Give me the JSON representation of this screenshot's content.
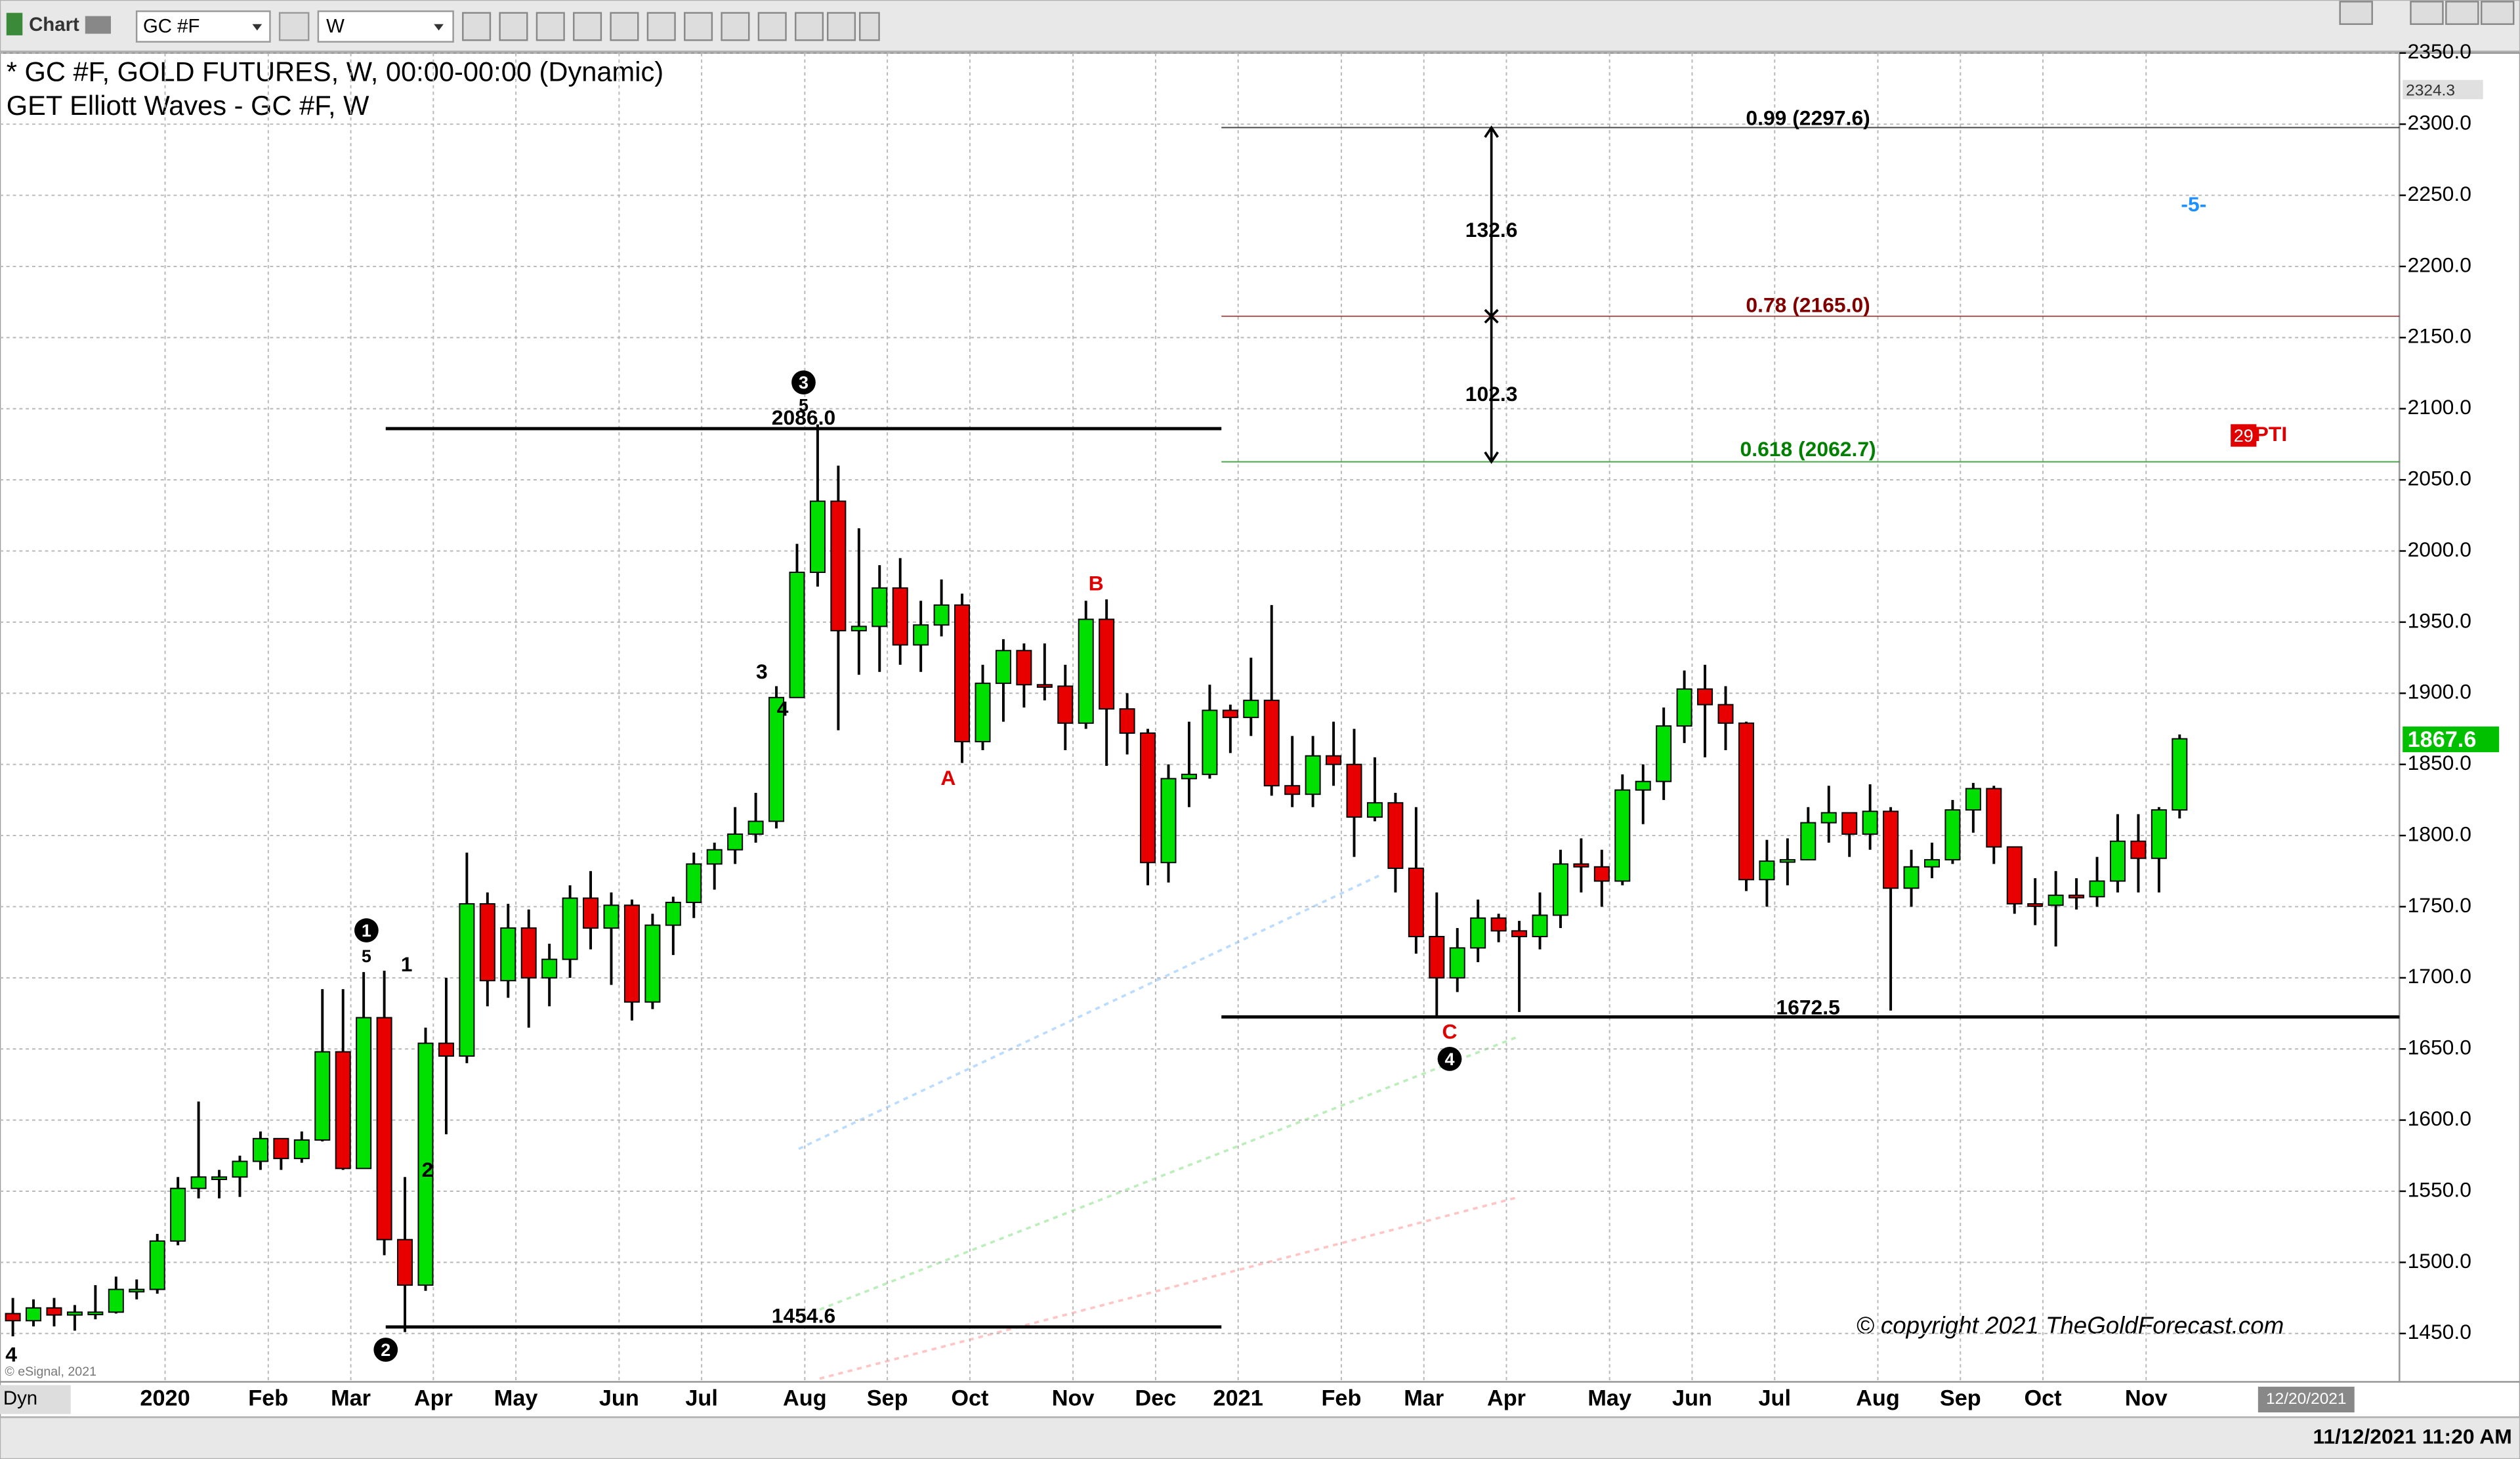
{
  "toolbar": {
    "app": "Chart",
    "symbol": "GC #F",
    "interval": "W"
  },
  "chart_data": {
    "type": "candlestick",
    "title": "* GC #F, GOLD FUTURES, W, 00:00-00:00 (Dynamic)",
    "subtitle": "GET Elliott Waves - GC #F, W",
    "categories": [
      null,
      null,
      null,
      null,
      null,
      null,
      null,
      null,
      "2020",
      null,
      null,
      null,
      null,
      "Feb",
      null,
      null,
      null,
      "Mar",
      null,
      null,
      null,
      "Apr",
      null,
      null,
      null,
      "May",
      null,
      null,
      null,
      null,
      "Jun",
      null,
      null,
      null,
      "Jul",
      null,
      null,
      null,
      null,
      "Aug",
      null,
      null,
      null,
      "Sep",
      null,
      null,
      null,
      "Oct",
      null,
      null,
      null,
      null,
      "Nov",
      null,
      null,
      null,
      "Dec",
      null,
      null,
      null,
      "2021",
      null,
      null,
      null,
      null,
      "Feb",
      null,
      null,
      null,
      "Mar",
      null,
      null,
      null,
      "Apr",
      null,
      null,
      null,
      null,
      "May",
      null,
      null,
      null,
      "Jun",
      null,
      null,
      null,
      "Jul",
      null,
      null,
      null,
      null,
      "Aug",
      null,
      null,
      null,
      "Sep",
      null,
      null,
      null,
      "Oct",
      null,
      null,
      null,
      null,
      "Nov",
      null
    ],
    "open": [
      1464,
      1459,
      1468,
      1463,
      1465,
      1465,
      1481,
      1481,
      1515,
      1552,
      1560,
      1560,
      1571,
      1587,
      1573,
      1586,
      1648,
      1566,
      1672,
      1516,
      1484,
      1654,
      1645,
      1752,
      1698,
      1735,
      1700,
      1713,
      1756,
      1735,
      1751,
      1683,
      1737,
      1753,
      1780,
      1790,
      1801,
      1810,
      1897,
      1985,
      2035,
      1944,
      1947,
      1974,
      1934,
      1948,
      1962,
      1866,
      1907,
      1930,
      1906,
      1905,
      1879,
      1952,
      1889,
      1872,
      1781,
      1840,
      1843,
      1888,
      1883,
      1895,
      1835,
      1829,
      1856,
      1850,
      1813,
      1823,
      1777,
      1729,
      1700,
      1721,
      1742,
      1733,
      1729,
      1744,
      1780,
      1778,
      1768,
      1832,
      1838,
      1877,
      1903,
      1892,
      1879,
      1769,
      1782,
      1783,
      1809,
      1816,
      1801,
      1817,
      1763,
      1778,
      1783,
      1818,
      1833,
      1792,
      1752,
      1751,
      1758,
      1757,
      1768,
      1796,
      1784,
      1818
    ],
    "high": [
      1475,
      1474,
      1475,
      1470,
      1484,
      1490,
      1488,
      1520,
      1560,
      1613,
      1565,
      1575,
      1592,
      1580,
      1592,
      1692,
      1692,
      1704,
      1705,
      1560,
      1665,
      1700,
      1788,
      1760,
      1752,
      1748,
      1724,
      1765,
      1775,
      1760,
      1755,
      1745,
      1757,
      1788,
      1795,
      1820,
      1830,
      1905,
      2005,
      2089,
      2060,
      2016,
      1990,
      1995,
      1965,
      1980,
      1970,
      1920,
      1938,
      1935,
      1935,
      1920,
      1965,
      1966,
      1900,
      1875,
      1850,
      1880,
      1906,
      1892,
      1925,
      1962,
      1870,
      1870,
      1880,
      1875,
      1855,
      1830,
      1820,
      1760,
      1735,
      1755,
      1745,
      1740,
      1760,
      1790,
      1798,
      1790,
      1843,
      1850,
      1890,
      1916,
      1920,
      1905,
      1880,
      1797,
      1798,
      1820,
      1835,
      1815,
      1836,
      1820,
      1790,
      1795,
      1825,
      1837,
      1835,
      1790,
      1770,
      1775,
      1770,
      1785,
      1815,
      1815,
      1820,
      1871
    ],
    "low": [
      1448,
      1455,
      1455,
      1452,
      1460,
      1464,
      1474,
      1478,
      1512,
      1545,
      1545,
      1546,
      1565,
      1565,
      1570,
      1585,
      1565,
      1575,
      1505,
      1451,
      1480,
      1590,
      1640,
      1680,
      1686,
      1665,
      1680,
      1700,
      1720,
      1695,
      1670,
      1678,
      1716,
      1742,
      1762,
      1780,
      1795,
      1805,
      1900,
      1975,
      1874,
      1913,
      1915,
      1920,
      1915,
      1940,
      1851,
      1860,
      1880,
      1890,
      1895,
      1860,
      1875,
      1849,
      1857,
      1765,
      1767,
      1820,
      1840,
      1858,
      1870,
      1828,
      1820,
      1820,
      1835,
      1785,
      1810,
      1760,
      1717,
      1672.5,
      1690,
      1711,
      1725,
      1676,
      1720,
      1735,
      1760,
      1750,
      1765,
      1808,
      1825,
      1865,
      1855,
      1860,
      1761,
      1750,
      1765,
      1785,
      1795,
      1785,
      1790,
      1677,
      1750,
      1770,
      1780,
      1802,
      1780,
      1745,
      1737,
      1722,
      1748,
      1750,
      1760,
      1760,
      1760,
      1812
    ],
    "close": [
      1459,
      1468,
      1463,
      1465,
      1465,
      1481,
      1481,
      1515,
      1552,
      1560,
      1560,
      1571,
      1587,
      1573,
      1586,
      1648,
      1566,
      1672,
      1516,
      1484,
      1654,
      1645,
      1752,
      1698,
      1735,
      1700,
      1713,
      1756,
      1735,
      1751,
      1683,
      1737,
      1753,
      1780,
      1790,
      1801,
      1810,
      1897,
      1985,
      2035,
      1944,
      1947,
      1974,
      1934,
      1948,
      1962,
      1866,
      1907,
      1930,
      1906,
      1905,
      1879,
      1952,
      1889,
      1872,
      1781,
      1840,
      1843,
      1888,
      1883,
      1895,
      1835,
      1829,
      1856,
      1850,
      1813,
      1823,
      1777,
      1729,
      1700,
      1721,
      1742,
      1733,
      1729,
      1744,
      1780,
      1778,
      1768,
      1832,
      1838,
      1877,
      1903,
      1892,
      1879,
      1769,
      1782,
      1783,
      1809,
      1816,
      1801,
      1817,
      1763,
      1778,
      1783,
      1818,
      1833,
      1792,
      1752,
      1751,
      1758,
      1757,
      1768,
      1796,
      1784,
      1818,
      1868
    ],
    "up_color": "#00e000",
    "down_color": "#e80000",
    "ylim": [
      1416,
      2350
    ],
    "yticks": [
      {
        "value": 1450,
        "label": "1450.0"
      },
      {
        "value": 1500,
        "label": "1500.0"
      },
      {
        "value": 1550,
        "label": "1550.0"
      },
      {
        "value": 1600,
        "label": "1600.0"
      },
      {
        "value": 1650,
        "label": "1650.0"
      },
      {
        "value": 1700,
        "label": "1700.0"
      },
      {
        "value": 1750,
        "label": "1750.0"
      },
      {
        "value": 1800,
        "label": "1800.0"
      },
      {
        "value": 1850,
        "label": "1850.0"
      },
      {
        "value": 1900,
        "label": "1900.0"
      },
      {
        "value": 1950,
        "label": "1950.0"
      },
      {
        "value": 2000,
        "label": "2000.0"
      },
      {
        "value": 2050,
        "label": "2050.0"
      },
      {
        "value": 2100,
        "label": "2100.0"
      },
      {
        "value": 2150,
        "label": "2150.0"
      },
      {
        "value": 2200,
        "label": "2200.0"
      },
      {
        "value": 2250,
        "label": "2250.0"
      },
      {
        "value": 2300,
        "label": "2300.0"
      },
      {
        "value": 2350,
        "label": "2350.0"
      }
    ],
    "grid": true,
    "last_price": 1867.6,
    "last_price_color": "#00c000",
    "top_price": 2324.3,
    "levels": [
      {
        "value": 2297.6,
        "label": "0.99 (2297.6)",
        "color": "#000000"
      },
      {
        "value": 2165,
        "label": "0.78 (2165.0)",
        "color": "#800000"
      },
      {
        "value": 2062.7,
        "label": "0.618 (2062.7)",
        "color": "#008000"
      },
      {
        "value": 2086,
        "label": "2086.0",
        "color": "#000000"
      },
      {
        "value": 1454.6,
        "label": "1454.6",
        "color": "#000000"
      },
      {
        "value": 1672.5,
        "label": "1672.5",
        "color": "#000000"
      }
    ],
    "measures": [
      132.6,
      102.3
    ],
    "wave_labels": [
      "1",
      "5",
      "1",
      "2",
      "2",
      "3",
      "4",
      "3",
      "5",
      "A",
      "B",
      "C",
      "4",
      "4",
      "-5-",
      "29",
      "PTI"
    ],
    "copyright": "© copyright 2021 TheGoldForecast.com",
    "source": "© eSignal, 2021"
  },
  "status": {
    "mode": "Dyn",
    "future_date": "12/20/2021",
    "timestamp": "11/12/2021 11:20 AM"
  }
}
